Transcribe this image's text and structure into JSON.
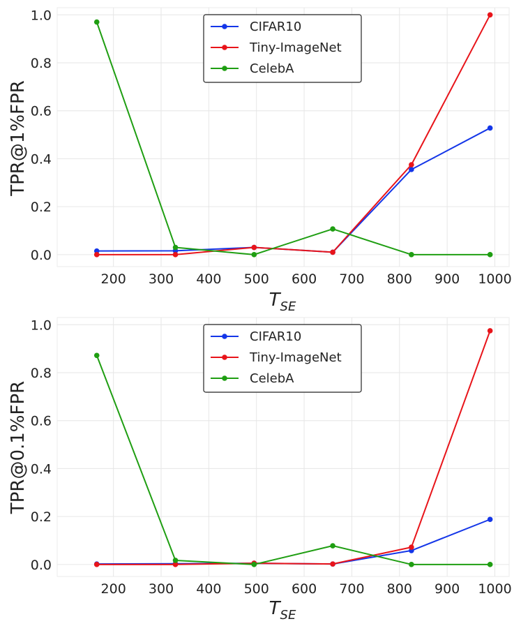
{
  "chart_data": [
    {
      "type": "line",
      "title": "",
      "xlabel": "T",
      "xlabel_sub": "SE",
      "ylabel": "TPR@1%FPR",
      "x": [
        165,
        330,
        495,
        660,
        825,
        990
      ],
      "xlim": [
        82,
        1030
      ],
      "ylim": [
        -0.05,
        1.03
      ],
      "xticks": [
        200,
        300,
        400,
        500,
        600,
        700,
        800,
        900,
        1000
      ],
      "yticks": [
        0.0,
        0.2,
        0.4,
        0.6,
        0.8,
        1.0
      ],
      "ytick_labels": [
        "0.0",
        "0.2",
        "0.4",
        "0.6",
        "0.8",
        "1.0"
      ],
      "grid": true,
      "legend_position": "top-center",
      "series": [
        {
          "name": "CIFAR10",
          "color": "#1436e8",
          "values": [
            0.015,
            0.016,
            0.03,
            0.01,
            0.355,
            0.528
          ]
        },
        {
          "name": "Tiny-ImageNet",
          "color": "#e8141a",
          "values": [
            0.0,
            0.0,
            0.03,
            0.01,
            0.375,
            1.0
          ]
        },
        {
          "name": "CelebA",
          "color": "#1f9e12",
          "values": [
            0.97,
            0.03,
            0.0,
            0.107,
            0.0,
            0.0
          ]
        }
      ]
    },
    {
      "type": "line",
      "title": "",
      "xlabel": "T",
      "xlabel_sub": "SE",
      "ylabel": "TPR@0.1%FPR",
      "x": [
        165,
        330,
        495,
        660,
        825,
        990
      ],
      "xlim": [
        82,
        1030
      ],
      "ylim": [
        -0.05,
        1.03
      ],
      "xticks": [
        200,
        300,
        400,
        500,
        600,
        700,
        800,
        900,
        1000
      ],
      "yticks": [
        0.0,
        0.2,
        0.4,
        0.6,
        0.8,
        1.0
      ],
      "ytick_labels": [
        "0.0",
        "0.2",
        "0.4",
        "0.6",
        "0.8",
        "1.0"
      ],
      "grid": true,
      "legend_position": "top-center",
      "series": [
        {
          "name": "CIFAR10",
          "color": "#1436e8",
          "values": [
            0.002,
            0.003,
            0.005,
            0.002,
            0.058,
            0.188
          ]
        },
        {
          "name": "Tiny-ImageNet",
          "color": "#e8141a",
          "values": [
            0.0,
            0.0,
            0.005,
            0.002,
            0.072,
            0.975
          ]
        },
        {
          "name": "CelebA",
          "color": "#1f9e12",
          "values": [
            0.872,
            0.017,
            0.0,
            0.078,
            0.0,
            0.0
          ]
        }
      ]
    }
  ]
}
